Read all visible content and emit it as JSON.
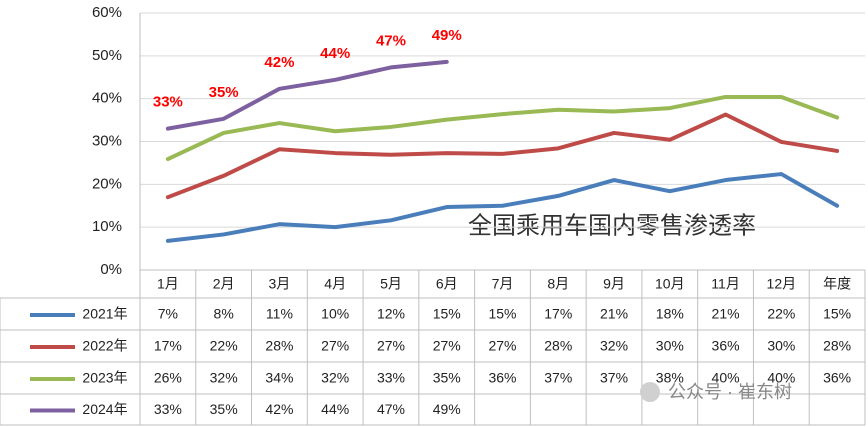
{
  "chart_data": {
    "type": "line",
    "title": "全国乘用车国内零售渗透率",
    "watermark": "公众号 · 崔东树",
    "categories": [
      "1月",
      "2月",
      "3月",
      "4月",
      "5月",
      "6月",
      "7月",
      "8月",
      "9月",
      "10月",
      "11月",
      "12月",
      "年度"
    ],
    "ylim": [
      0,
      60
    ],
    "yticks": [
      {
        "value": 0,
        "label": "0%"
      },
      {
        "value": 10,
        "label": "10%"
      },
      {
        "value": 20,
        "label": "20%"
      },
      {
        "value": 30,
        "label": "30%"
      },
      {
        "value": 40,
        "label": "40%"
      },
      {
        "value": 50,
        "label": "50%"
      },
      {
        "value": 60,
        "label": "60%"
      }
    ],
    "grid": true,
    "data_labels_series": 3,
    "data_labels_color": "#ff0000",
    "series": [
      {
        "name": "2021年",
        "color": "#4a7ebb",
        "values": [
          6.8,
          8.3,
          10.7,
          10.0,
          11.6,
          14.7,
          15.0,
          17.3,
          21.0,
          18.4,
          21.0,
          22.4,
          15.0
        ],
        "value_labels": [
          "7%",
          "8%",
          "11%",
          "10%",
          "12%",
          "15%",
          "15%",
          "17%",
          "21%",
          "18%",
          "21%",
          "22%",
          "15%"
        ]
      },
      {
        "name": "2022年",
        "color": "#be4b48",
        "values": [
          17.0,
          22.0,
          28.2,
          27.3,
          26.9,
          27.3,
          27.1,
          28.4,
          32.0,
          30.4,
          36.3,
          29.9,
          27.8
        ],
        "value_labels": [
          "17%",
          "22%",
          "28%",
          "27%",
          "27%",
          "27%",
          "27%",
          "28%",
          "32%",
          "30%",
          "36%",
          "30%",
          "28%"
        ]
      },
      {
        "name": "2023年",
        "color": "#98b954",
        "values": [
          25.9,
          32.0,
          34.3,
          32.4,
          33.4,
          35.1,
          36.4,
          37.4,
          37.0,
          37.8,
          40.4,
          40.4,
          35.6
        ],
        "value_labels": [
          "26%",
          "32%",
          "34%",
          "32%",
          "33%",
          "35%",
          "36%",
          "37%",
          "37%",
          "38%",
          "40%",
          "40%",
          "36%"
        ]
      },
      {
        "name": "2024年",
        "color": "#7d60a0",
        "values": [
          33.0,
          35.3,
          42.3,
          44.4,
          47.3,
          48.6,
          null,
          null,
          null,
          null,
          null,
          null,
          null
        ],
        "value_labels": [
          "33%",
          "35%",
          "42%",
          "44%",
          "47%",
          "49%",
          null,
          null,
          null,
          null,
          null,
          null,
          null
        ]
      }
    ]
  }
}
